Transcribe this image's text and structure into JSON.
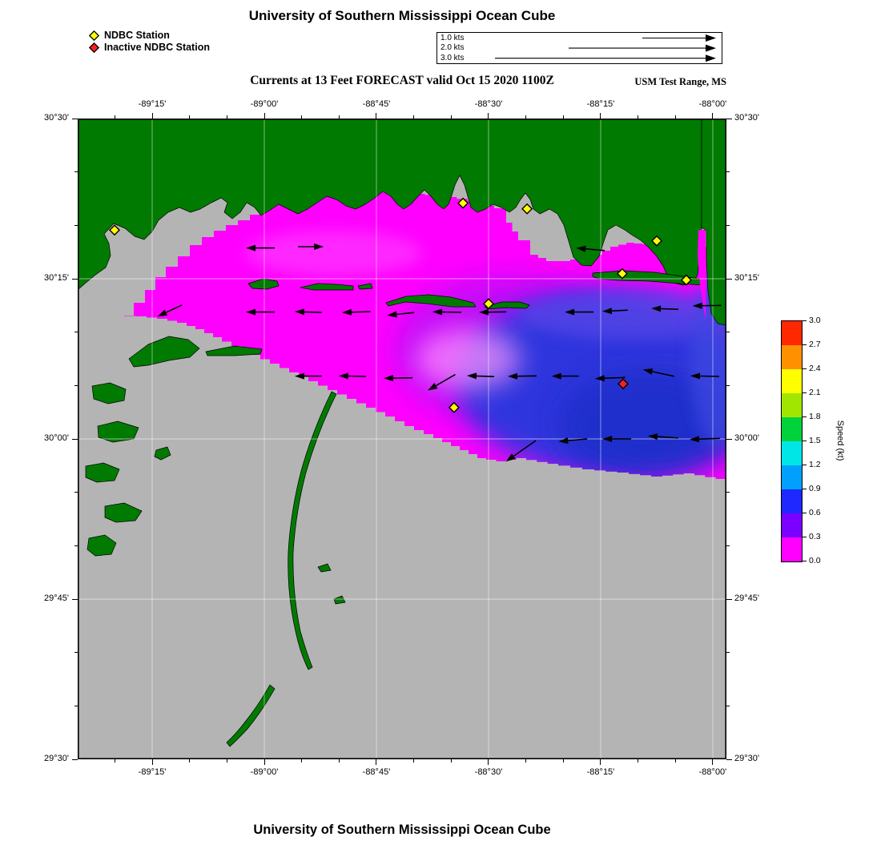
{
  "page": {
    "title": "University of Southern Mississippi Ocean Cube",
    "footer_title": "University of Southern Mississippi Ocean Cube",
    "subtitle": "Currents at 13 Feet FORECAST valid Oct 15 2020 1100Z",
    "range_label": "USM Test Range, MS"
  },
  "legend": {
    "items": [
      {
        "label": "NDBC Station",
        "marker": "yellow-diamond",
        "color": "#ffff00"
      },
      {
        "label": "Inactive NDBC Station",
        "marker": "red-diamond",
        "color": "#ff1e1e"
      }
    ]
  },
  "vector_scale": {
    "rows": [
      {
        "label": "1.0 kts",
        "kts": 1.0
      },
      {
        "label": "2.0 kts",
        "kts": 2.0
      },
      {
        "label": "3.0 kts",
        "kts": 3.0
      }
    ]
  },
  "chart_data": {
    "type": "heatmap",
    "subtype": "geographic surface-current forecast map with vector overlay",
    "title": "Currents at 13 Feet FORECAST valid Oct 15 2020 1100Z",
    "region": "USM Test Range, MS",
    "depth": "13 Feet",
    "valid_time": "Oct 15 2020 1100Z",
    "lon_range": [
      -89.4161,
      -87.9696
    ],
    "lat_range": [
      29.5,
      30.5
    ],
    "x_ticks": [
      {
        "lon": -89.25,
        "label": "-89°15'"
      },
      {
        "lon": -89.0,
        "label": "-89°00'"
      },
      {
        "lon": -88.75,
        "label": "-88°45'"
      },
      {
        "lon": -88.5,
        "label": "-88°30'"
      },
      {
        "lon": -88.25,
        "label": "-88°15'"
      },
      {
        "lon": -88.0,
        "label": "-88°00'"
      }
    ],
    "y_ticks": [
      {
        "lat": 30.5,
        "label": "30°30'"
      },
      {
        "lat": 30.25,
        "label": "30°15'"
      },
      {
        "lat": 30.0,
        "label": "30°00'"
      },
      {
        "lat": 29.75,
        "label": "29°45'"
      },
      {
        "lat": 29.5,
        "label": "29°30'"
      }
    ],
    "colorbar": {
      "label": "Speed (kt)",
      "min": 0.0,
      "max": 3.0,
      "tick_labels": [
        "0.0",
        "0.3",
        "0.6",
        "0.9",
        "1.2",
        "1.5",
        "1.8",
        "2.1",
        "2.4",
        "2.7",
        "3.0"
      ],
      "segment_colors_bottom_to_top": [
        "#ff00ff",
        "#7a00ff",
        "#1e28ff",
        "#00a0ff",
        "#00e6e6",
        "#00d23c",
        "#a0e600",
        "#ffff00",
        "#ff9100",
        "#ff2800"
      ]
    },
    "map_colors": {
      "land": "#007a00",
      "background_no_data": "#b4b4b4",
      "low_speed_field": "#ff00ff",
      "offshore_blue": "#2838dc"
    },
    "stations_active": [
      {
        "lon": -89.334,
        "lat": 30.326
      },
      {
        "lon": -88.557,
        "lat": 30.368
      },
      {
        "lon": -88.414,
        "lat": 30.359
      },
      {
        "lon": -88.125,
        "lat": 30.309
      },
      {
        "lon": -88.202,
        "lat": 30.258
      },
      {
        "lon": -88.059,
        "lat": 30.248
      },
      {
        "lon": -88.5,
        "lat": 30.211
      },
      {
        "lon": -88.577,
        "lat": 30.049
      }
    ],
    "stations_inactive": [
      {
        "lon": -88.2,
        "lat": 30.086
      }
    ],
    "current_vectors": [
      {
        "lon": -89.009,
        "lat": 30.298,
        "dir": 180,
        "len": 36
      },
      {
        "lon": -88.896,
        "lat": 30.3,
        "dir": 0,
        "len": 32
      },
      {
        "lon": -88.273,
        "lat": 30.296,
        "dir": 175,
        "len": 36
      },
      {
        "lon": -89.211,
        "lat": 30.2,
        "dir": 205,
        "len": 34
      },
      {
        "lon": -89.009,
        "lat": 30.198,
        "dir": 180,
        "len": 36
      },
      {
        "lon": -88.902,
        "lat": 30.198,
        "dir": 178,
        "len": 34
      },
      {
        "lon": -88.795,
        "lat": 30.198,
        "dir": 182,
        "len": 36
      },
      {
        "lon": -88.696,
        "lat": 30.195,
        "dir": 186,
        "len": 34
      },
      {
        "lon": -88.593,
        "lat": 30.198,
        "dir": 179,
        "len": 36
      },
      {
        "lon": -88.491,
        "lat": 30.198,
        "dir": 181,
        "len": 34
      },
      {
        "lon": -88.298,
        "lat": 30.198,
        "dir": 180,
        "len": 36
      },
      {
        "lon": -88.218,
        "lat": 30.2,
        "dir": 183,
        "len": 32
      },
      {
        "lon": -88.107,
        "lat": 30.203,
        "dir": 178,
        "len": 34
      },
      {
        "lon": -88.013,
        "lat": 30.208,
        "dir": 181,
        "len": 36
      },
      {
        "lon": -88.902,
        "lat": 30.098,
        "dir": 180,
        "len": 34
      },
      {
        "lon": -88.804,
        "lat": 30.098,
        "dir": 179,
        "len": 34
      },
      {
        "lon": -88.702,
        "lat": 30.095,
        "dir": 181,
        "len": 36
      },
      {
        "lon": -88.605,
        "lat": 30.088,
        "dir": 210,
        "len": 40
      },
      {
        "lon": -88.518,
        "lat": 30.098,
        "dir": 178,
        "len": 34
      },
      {
        "lon": -88.425,
        "lat": 30.098,
        "dir": 181,
        "len": 36
      },
      {
        "lon": -88.329,
        "lat": 30.098,
        "dir": 180,
        "len": 34
      },
      {
        "lon": -88.229,
        "lat": 30.095,
        "dir": 182,
        "len": 38
      },
      {
        "lon": -88.121,
        "lat": 30.103,
        "dir": 168,
        "len": 40
      },
      {
        "lon": -88.018,
        "lat": 30.098,
        "dir": 179,
        "len": 36
      },
      {
        "lon": -88.428,
        "lat": 29.981,
        "dir": 215,
        "len": 46
      },
      {
        "lon": -88.312,
        "lat": 29.998,
        "dir": 185,
        "len": 36
      },
      {
        "lon": -88.214,
        "lat": 30.0,
        "dir": 180,
        "len": 36
      },
      {
        "lon": -88.111,
        "lat": 30.003,
        "dir": 176,
        "len": 38
      },
      {
        "lon": -88.018,
        "lat": 30.0,
        "dir": 182,
        "len": 38
      }
    ]
  }
}
